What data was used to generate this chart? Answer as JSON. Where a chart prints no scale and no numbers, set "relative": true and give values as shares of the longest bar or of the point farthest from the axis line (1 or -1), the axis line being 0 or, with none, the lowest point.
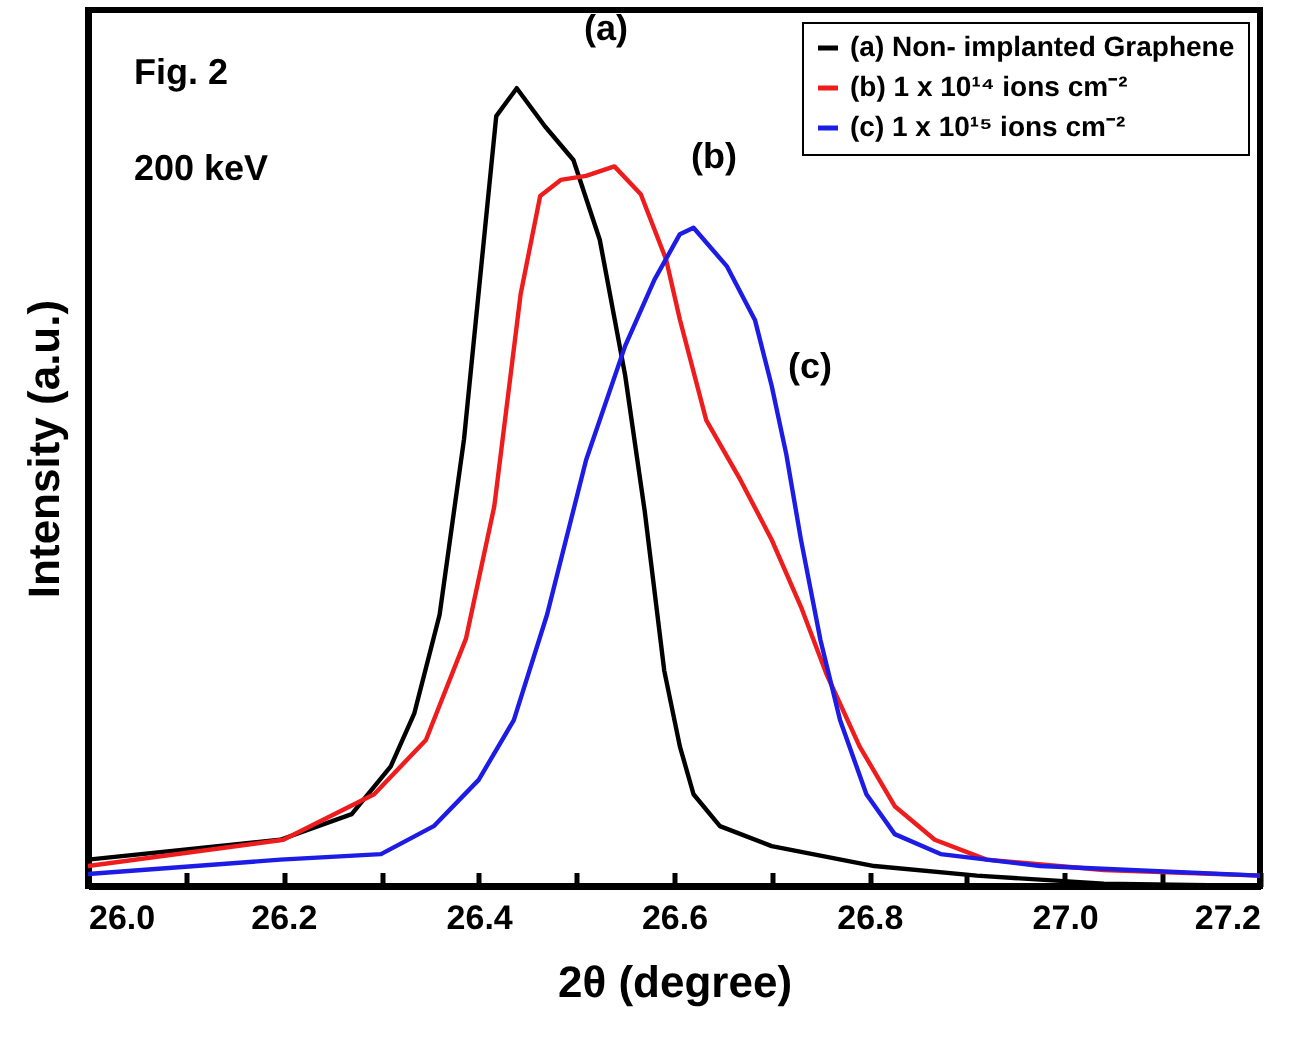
{
  "chart_data": {
    "type": "line",
    "relative": true,
    "xlabel": "2θ (degree)",
    "ylabel": "Intensity (a.u.)",
    "xlim": [
      26.0,
      27.2
    ],
    "xticks": [
      {
        "value": 26.0,
        "label": "26.0"
      },
      {
        "value": 26.1,
        "label": null
      },
      26.2,
      {
        "value": 26.3,
        "label": null
      },
      26.4,
      {
        "value": 26.5,
        "label": null
      },
      26.6,
      {
        "value": 26.7,
        "label": null
      },
      26.8,
      {
        "value": 26.9,
        "label": null
      },
      {
        "value": 27.0,
        "label": "27.0"
      },
      {
        "value": 27.1,
        "label": null
      },
      27.2
    ],
    "grid": false,
    "legend": "top right",
    "marker": "none",
    "line_style": "solid",
    "annotations": [
      "Fig. 2",
      "200 keV",
      "(a)",
      "(b)",
      "(c)"
    ],
    "series": [
      {
        "name": "(a) Non- implanted Graphene",
        "color": "#000000",
        "x": [
          26.0,
          26.197,
          26.27,
          26.31,
          26.334,
          26.36,
          26.385,
          26.418,
          26.439,
          26.468,
          26.497,
          26.524,
          26.55,
          26.57,
          26.59,
          26.606,
          26.62,
          26.647,
          26.7,
          26.805,
          26.91,
          27.04,
          27.2
        ],
        "values": [
          0.033,
          0.058,
          0.09,
          0.15,
          0.216,
          0.34,
          0.56,
          0.965,
          1.0,
          0.952,
          0.91,
          0.81,
          0.64,
          0.47,
          0.27,
          0.175,
          0.115,
          0.075,
          0.05,
          0.025,
          0.013,
          0.003,
          0.0
        ]
      },
      {
        "name": "(b) 1 x 10¹⁴ ions cm⁻²",
        "color": "#ee1c1c",
        "x": [
          26.0,
          26.2,
          26.293,
          26.346,
          26.387,
          26.416,
          26.443,
          26.463,
          26.484,
          26.51,
          26.539,
          26.566,
          26.592,
          26.606,
          26.633,
          26.668,
          26.7,
          26.73,
          26.756,
          26.79,
          26.826,
          26.867,
          26.92,
          27.04,
          27.2
        ],
        "values": [
          0.025,
          0.058,
          0.115,
          0.183,
          0.31,
          0.476,
          0.742,
          0.865,
          0.885,
          0.89,
          0.902,
          0.867,
          0.785,
          0.71,
          0.584,
          0.509,
          0.434,
          0.35,
          0.266,
          0.175,
          0.1,
          0.058,
          0.033,
          0.02,
          0.013
        ]
      },
      {
        "name": "(c) 1 x 10¹⁵ ions cm⁻²",
        "color": "#1c1ce6",
        "x": [
          26.0,
          26.197,
          26.3,
          26.354,
          26.4,
          26.436,
          26.47,
          26.51,
          26.55,
          26.58,
          26.606,
          26.62,
          26.654,
          26.683,
          26.7,
          26.715,
          26.73,
          26.75,
          26.77,
          26.797,
          26.826,
          26.873,
          26.975,
          27.2
        ],
        "values": [
          0.015,
          0.033,
          0.04,
          0.075,
          0.133,
          0.208,
          0.34,
          0.534,
          0.677,
          0.76,
          0.817,
          0.825,
          0.777,
          0.709,
          0.627,
          0.541,
          0.434,
          0.308,
          0.208,
          0.115,
          0.065,
          0.04,
          0.025,
          0.013
        ]
      }
    ]
  }
}
